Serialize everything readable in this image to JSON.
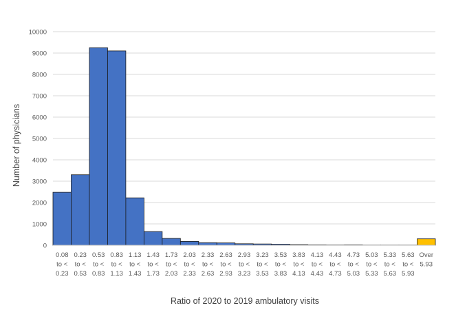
{
  "chart_data": {
    "type": "bar",
    "title": "",
    "xlabel": "Ratio of 2020 to 2019 ambulatory visits",
    "ylabel": "Number of physicians",
    "ylim": [
      0,
      10000
    ],
    "yticks": [
      "0",
      "1000",
      "2000",
      "3000",
      "4000",
      "5000",
      "6000",
      "7000",
      "8000",
      "9000",
      "10000"
    ],
    "grid": true,
    "legend": "none",
    "colors": {
      "bar": "#4472C4",
      "highlight": "#FFC000",
      "edge": "#1a1a1a",
      "grid": "#d9d9d9"
    },
    "categories": [
      [
        "0.08",
        "to <",
        "0.23"
      ],
      [
        "0.23",
        "to <",
        "0.53"
      ],
      [
        "0.53",
        "to <",
        "0.83"
      ],
      [
        "0.83",
        "to <",
        "1.13"
      ],
      [
        "1.13",
        "to <",
        "1.43"
      ],
      [
        "1.43",
        "to <",
        "1.73"
      ],
      [
        "1.73",
        "to <",
        "2.03"
      ],
      [
        "2.03",
        "to <",
        "2.33"
      ],
      [
        "2.33",
        "to <",
        "2.63"
      ],
      [
        "2.63",
        "to <",
        "2.93"
      ],
      [
        "2.93",
        "to <",
        "3.23"
      ],
      [
        "3.23",
        "to <",
        "3.53"
      ],
      [
        "3.53",
        "to <",
        "3.83"
      ],
      [
        "3.83",
        "to <",
        "4.13"
      ],
      [
        "4.13",
        "to <",
        "4.43"
      ],
      [
        "4.43",
        "to <",
        "4.73"
      ],
      [
        "4.73",
        "to <",
        "5.03"
      ],
      [
        "5.03",
        "to <",
        "5.33"
      ],
      [
        "5.33",
        "to <",
        "5.63"
      ],
      [
        "5.63",
        "to <",
        "5.93"
      ],
      [
        "Over",
        "5.93"
      ]
    ],
    "values": [
      2480,
      3300,
      9250,
      9100,
      2220,
      640,
      320,
      180,
      120,
      110,
      70,
      60,
      50,
      30,
      20,
      15,
      20,
      10,
      10,
      10,
      300
    ],
    "highlight_index": 20
  }
}
